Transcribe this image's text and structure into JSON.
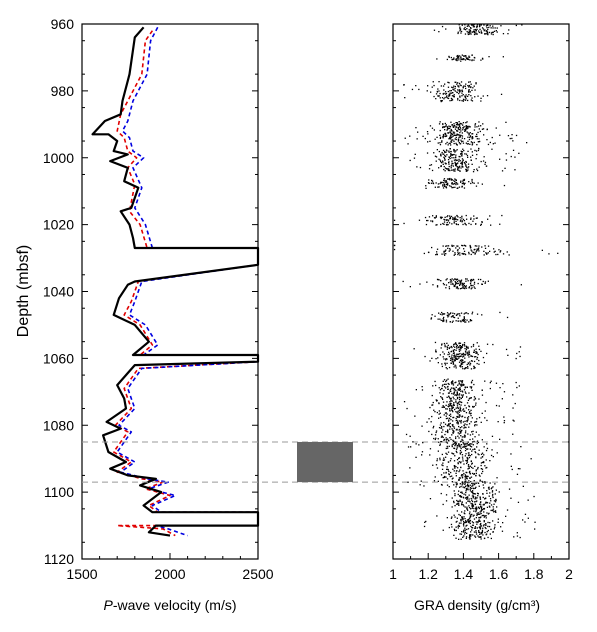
{
  "chart_data": [
    {
      "type": "line",
      "ylabel": "Depth (mbsf)",
      "xlabel_italic": "P",
      "xlabel_rest": "-wave velocity (m/s)",
      "xlim": [
        1500,
        2500
      ],
      "ylim": [
        960,
        1120
      ],
      "y_reversed": true,
      "xticks": [
        1500,
        2000,
        2500
      ],
      "xtick_labels": [
        "1500",
        "2000",
        "2500"
      ],
      "yticks": [
        960,
        980,
        1000,
        1020,
        1040,
        1060,
        1080,
        1100,
        1120
      ],
      "ytick_labels": [
        "960",
        "980",
        "1000",
        "1020",
        "1040",
        "1060",
        "1080",
        "1100",
        "1120"
      ],
      "grid": false,
      "series": [
        {
          "color": "#000000",
          "style": "solid",
          "points": [
            [
              1850,
              961
            ],
            [
              1800,
              964
            ],
            [
              1770,
              975
            ],
            [
              1730,
              983
            ],
            [
              1720,
              987
            ],
            [
              1630,
              989
            ],
            [
              1560,
              993
            ],
            [
              1650,
              993
            ],
            [
              1700,
              995
            ],
            [
              1680,
              998
            ],
            [
              1760,
              999
            ],
            [
              1660,
              1001
            ],
            [
              1760,
              1003
            ],
            [
              1740,
              1007
            ],
            [
              1820,
              1009
            ],
            [
              1780,
              1015
            ],
            [
              1720,
              1016
            ],
            [
              1770,
              1020
            ],
            [
              1790,
              1024
            ],
            [
              1800,
              1027
            ],
            [
              2500,
              1027
            ],
            [
              2500,
              1032
            ],
            [
              1800,
              1037
            ],
            [
              1760,
              1038
            ],
            [
              1710,
              1042
            ],
            [
              1680,
              1047
            ],
            [
              1800,
              1050
            ],
            [
              1880,
              1055
            ],
            [
              1790,
              1059
            ],
            [
              2500,
              1059
            ],
            [
              2500,
              1061
            ],
            [
              1800,
              1062
            ],
            [
              1700,
              1068
            ],
            [
              1740,
              1072
            ],
            [
              1750,
              1075
            ],
            [
              1640,
              1079
            ],
            [
              1720,
              1081
            ],
            [
              1620,
              1083
            ],
            [
              1650,
              1088
            ],
            [
              1750,
              1091
            ],
            [
              1660,
              1093
            ],
            [
              1760,
              1095
            ],
            [
              1920,
              1096
            ],
            [
              1830,
              1098
            ],
            [
              1950,
              1100
            ],
            [
              1850,
              1104
            ],
            [
              1900,
              1106
            ],
            [
              2500,
              1106
            ],
            [
              2500,
              1110
            ],
            [
              1920,
              1110
            ],
            [
              1880,
              1112
            ],
            [
              2000,
              1113
            ]
          ]
        },
        {
          "color": "#e00000",
          "style": "dashed",
          "points": [
            [
              1900,
              962
            ],
            [
              1860,
              965
            ],
            [
              1840,
              975
            ],
            [
              1760,
              983
            ],
            [
              1720,
              987
            ],
            [
              1700,
              992
            ],
            [
              1740,
              994
            ],
            [
              1760,
              998
            ],
            [
              1810,
              1000
            ],
            [
              1760,
              1003
            ],
            [
              1800,
              1008
            ],
            [
              1770,
              1016
            ],
            [
              1830,
              1020
            ],
            [
              1870,
              1027
            ],
            [
              2500,
              1027
            ],
            [
              2500,
              1032
            ],
            [
              1820,
              1037
            ],
            [
              1780,
              1043
            ],
            [
              1740,
              1047
            ],
            [
              1830,
              1050
            ],
            [
              1900,
              1056
            ],
            [
              1830,
              1059
            ],
            [
              2500,
              1059
            ],
            [
              2500,
              1061
            ],
            [
              1820,
              1063
            ],
            [
              1740,
              1069
            ],
            [
              1780,
              1075
            ],
            [
              1690,
              1080
            ],
            [
              1760,
              1082
            ],
            [
              1680,
              1088
            ],
            [
              1780,
              1091
            ],
            [
              1700,
              1094
            ],
            [
              1840,
              1096
            ],
            [
              1960,
              1097
            ],
            [
              1860,
              1099
            ],
            [
              2000,
              1101
            ],
            [
              1880,
              1104
            ],
            [
              1930,
              1106
            ],
            [
              2500,
              1106
            ],
            [
              2500,
              1110
            ],
            [
              1700,
              1110
            ],
            [
              1960,
              1111
            ],
            [
              2030,
              1113
            ]
          ]
        },
        {
          "color": "#0000e0",
          "style": "dashed",
          "points": [
            [
              1930,
              961
            ],
            [
              1890,
              965
            ],
            [
              1870,
              975
            ],
            [
              1790,
              983
            ],
            [
              1760,
              989
            ],
            [
              1730,
              992
            ],
            [
              1770,
              994
            ],
            [
              1790,
              998
            ],
            [
              1850,
              1000
            ],
            [
              1790,
              1003
            ],
            [
              1840,
              1009
            ],
            [
              1800,
              1015
            ],
            [
              1860,
              1020
            ],
            [
              1900,
              1027
            ],
            [
              2500,
              1027
            ],
            [
              2500,
              1032
            ],
            [
              1840,
              1037
            ],
            [
              1800,
              1043
            ],
            [
              1770,
              1047
            ],
            [
              1860,
              1050
            ],
            [
              1930,
              1056
            ],
            [
              1850,
              1059
            ],
            [
              2500,
              1059
            ],
            [
              2500,
              1061
            ],
            [
              1840,
              1063
            ],
            [
              1760,
              1069
            ],
            [
              1800,
              1075
            ],
            [
              1710,
              1080
            ],
            [
              1780,
              1082
            ],
            [
              1700,
              1088
            ],
            [
              1800,
              1091
            ],
            [
              1720,
              1094
            ],
            [
              1870,
              1096
            ],
            [
              1990,
              1097
            ],
            [
              1880,
              1099
            ],
            [
              2030,
              1101
            ],
            [
              1900,
              1104
            ],
            [
              1950,
              1106
            ],
            [
              2500,
              1106
            ],
            [
              2500,
              1110
            ],
            [
              1920,
              1110
            ],
            [
              1990,
              1111
            ],
            [
              2100,
              1113
            ]
          ]
        }
      ]
    },
    {
      "type": "scatter",
      "xlabel": "GRA density (g/cm³)",
      "xlim": [
        1,
        2
      ],
      "ylim": [
        960,
        1120
      ],
      "y_reversed": true,
      "xticks": [
        1,
        1.2,
        1.4,
        1.6,
        1.8,
        2
      ],
      "xtick_labels": [
        "1",
        "1.2",
        "1.4",
        "1.6",
        "1.8",
        "2"
      ],
      "grid": false,
      "marker_color": "#000000",
      "clusters": [
        {
          "depth": [
            960,
            963
          ],
          "center": 1.48,
          "spread": 0.1,
          "count": 120
        },
        {
          "depth": [
            969,
            971
          ],
          "center": 1.4,
          "spread": 0.08,
          "count": 60
        },
        {
          "depth": [
            977,
            983
          ],
          "center": 1.35,
          "spread": 0.12,
          "count": 160
        },
        {
          "depth": [
            989,
            996
          ],
          "center": 1.37,
          "spread": 0.13,
          "count": 260
        },
        {
          "depth": [
            997,
            1004
          ],
          "center": 1.36,
          "spread": 0.12,
          "count": 220
        },
        {
          "depth": [
            1006,
            1009
          ],
          "center": 1.33,
          "spread": 0.12,
          "count": 100
        },
        {
          "depth": [
            1017,
            1020
          ],
          "center": 1.33,
          "spread": 0.14,
          "count": 100
        },
        {
          "depth": [
            1026,
            1029
          ],
          "center": 1.4,
          "spread": 0.2,
          "count": 110
        },
        {
          "depth": [
            1036,
            1039
          ],
          "center": 1.38,
          "spread": 0.14,
          "count": 110
        },
        {
          "depth": [
            1046,
            1049
          ],
          "center": 1.35,
          "spread": 0.12,
          "count": 80
        },
        {
          "depth": [
            1055,
            1063
          ],
          "center": 1.38,
          "spread": 0.12,
          "count": 240
        },
        {
          "depth": [
            1066,
            1086
          ],
          "center": 1.36,
          "spread": 0.12,
          "count": 520
        },
        {
          "depth": [
            1086,
            1098
          ],
          "center": 1.4,
          "spread": 0.13,
          "count": 300
        },
        {
          "depth": [
            1098,
            1114
          ],
          "center": 1.46,
          "spread": 0.12,
          "count": 460
        }
      ]
    }
  ],
  "core_gap": {
    "top_depth": 1085,
    "bottom_depth": 1097,
    "color": "#666666"
  }
}
